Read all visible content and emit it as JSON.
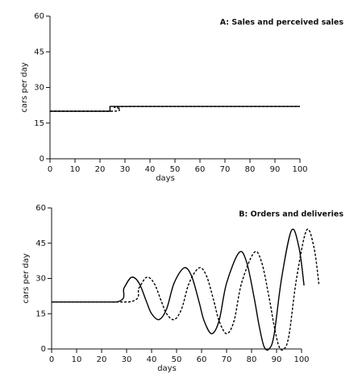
{
  "chart_data": [
    {
      "type": "line",
      "title": "A: Sales and perceived sales",
      "xlabel": "days",
      "ylabel": "cars per day",
      "xlim": [
        0,
        100
      ],
      "xticks": [
        0,
        10,
        20,
        30,
        40,
        50,
        60,
        70,
        80,
        90,
        100
      ],
      "ylim": [
        0,
        60
      ],
      "yticks": [
        0,
        15,
        30,
        45,
        60
      ],
      "series": [
        {
          "color": "#000000",
          "style": "solid",
          "x": [
            0,
            24,
            24,
            100
          ],
          "values": [
            20,
            20,
            22,
            22
          ]
        },
        {
          "color": "#000000",
          "style": "dashed",
          "x": [
            0,
            25,
            28,
            32,
            100
          ],
          "values": [
            20,
            20,
            21,
            22,
            22
          ]
        }
      ]
    },
    {
      "type": "line",
      "title": "B: Orders and deliveries",
      "xlabel": "days",
      "ylabel": "cars per day",
      "xlim": [
        0,
        100
      ],
      "xticks": [
        0,
        10,
        20,
        30,
        40,
        50,
        60,
        70,
        80,
        90,
        100
      ],
      "ylim": [
        0,
        60
      ],
      "yticks": [
        0,
        15,
        30,
        45,
        60
      ],
      "series": [
        {
          "color": "#000000",
          "style": "solid",
          "x": [
            0,
            26,
            29,
            32,
            35,
            38,
            40,
            43,
            46,
            49,
            53,
            56,
            59,
            61,
            64,
            67,
            70,
            75,
            78,
            81,
            83,
            85,
            87,
            89,
            92,
            96,
            99,
            101
          ],
          "values": [
            20,
            20,
            26,
            30.5,
            28,
            20,
            15,
            12.5,
            17,
            28,
            34.5,
            31,
            20,
            12,
            6.5,
            12,
            28,
            41,
            37,
            22,
            10,
            1,
            0,
            6,
            30,
            50.5,
            43,
            27
          ]
        },
        {
          "color": "#000000",
          "style": "dashed",
          "x": [
            0,
            31,
            35,
            38,
            41,
            44,
            46,
            49,
            52,
            55,
            59,
            62,
            65,
            67,
            70,
            73,
            76,
            81,
            84,
            87,
            89,
            91,
            93,
            95,
            98,
            102,
            105,
            107
          ],
          "values": [
            20,
            20,
            26,
            30.5,
            28,
            20,
            15,
            12.5,
            17,
            28,
            34.5,
            31,
            20,
            12,
            6.5,
            12,
            28,
            41,
            37,
            22,
            10,
            1,
            0,
            6,
            30,
            50.5,
            43,
            27
          ]
        }
      ]
    }
  ]
}
